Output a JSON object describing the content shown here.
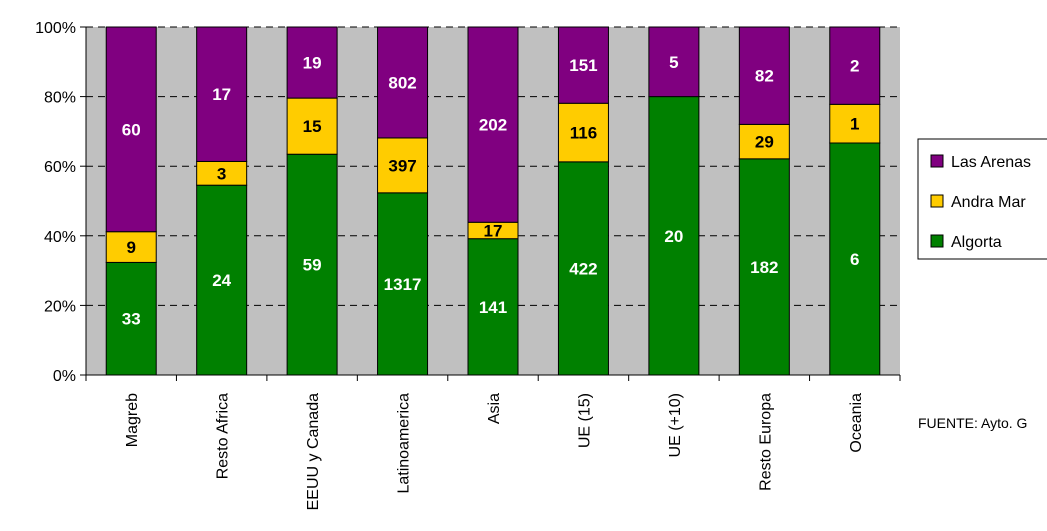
{
  "chart_data": {
    "type": "bar",
    "stacked": "percent",
    "categories": [
      "Magreb",
      "Resto Africa",
      "EEUU y Canada",
      "Latinoamerica",
      "Asia",
      "UE (15)",
      "UE (+10)",
      "Resto Europa",
      "Oceania"
    ],
    "series": [
      {
        "name": "Algorta",
        "color": "#008000",
        "label_color": "#ffffff",
        "values": [
          33,
          24,
          59,
          1317,
          141,
          422,
          20,
          182,
          6
        ]
      },
      {
        "name": "Andra Mari",
        "display_name": "Andra Mar",
        "color": "#ffcc00",
        "label_color": "#000000",
        "values": [
          9,
          3,
          15,
          397,
          17,
          116,
          0,
          29,
          1
        ]
      },
      {
        "name": "Las Arenas",
        "display_name": "Las Arenas",
        "color": "#800080",
        "label_color": "#ffffff",
        "values": [
          60,
          17,
          19,
          802,
          202,
          151,
          5,
          82,
          2
        ]
      }
    ],
    "y_ticks": [
      "0%",
      "20%",
      "40%",
      "60%",
      "80%",
      "100%"
    ],
    "ylim": [
      0,
      100
    ],
    "plot_background": "#c0c0c0",
    "grid": "dashed-horizontal",
    "legend_position": "right",
    "source_note": "FUENTE: Ayto. G"
  }
}
